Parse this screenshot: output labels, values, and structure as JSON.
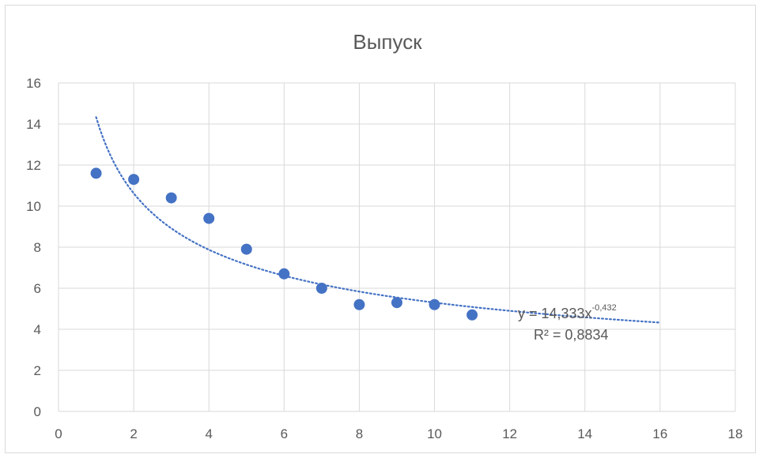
{
  "chart_data": {
    "type": "scatter",
    "title": "Выпуск",
    "xlabel": "",
    "ylabel": "",
    "xlim": [
      0,
      18
    ],
    "ylim": [
      0,
      16
    ],
    "xticks": [
      0,
      2,
      4,
      6,
      8,
      10,
      12,
      14,
      16,
      18
    ],
    "yticks": [
      0,
      2,
      4,
      6,
      8,
      10,
      12,
      14,
      16
    ],
    "grid": true,
    "legend": "none",
    "series": [
      {
        "x": [
          1,
          2,
          3,
          4,
          5,
          6,
          7,
          8,
          9,
          10,
          11
        ],
        "y": [
          11.6,
          11.3,
          10.4,
          9.4,
          7.9,
          6.7,
          6.0,
          5.2,
          5.3,
          5.2,
          4.7
        ],
        "color": "#4472C4"
      }
    ],
    "trendline": {
      "type": "power",
      "coefficient": 14.333,
      "exponent": -0.432,
      "x_range": [
        1,
        16
      ],
      "style": "dotted",
      "color": "#4472C4",
      "equation_text": "y = 14,333x",
      "equation_exponent_text": "-0,432",
      "r2_text": "R² = 0,8834"
    }
  },
  "colors": {
    "marker": "#4472C4",
    "grid": "#d9d9d9",
    "text": "#595959"
  }
}
